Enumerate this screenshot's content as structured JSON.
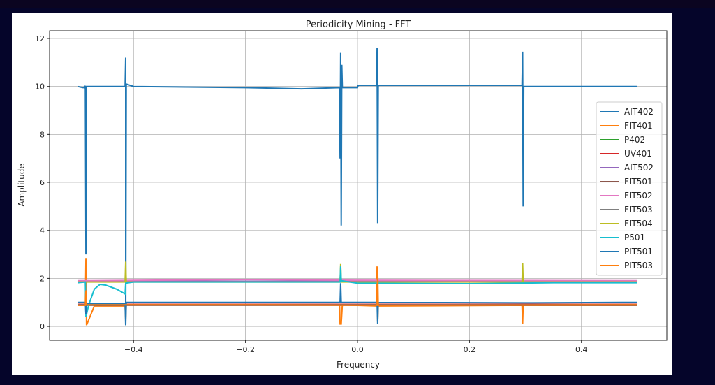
{
  "chart_data": {
    "type": "line",
    "title": "Periodicity Mining - FFT",
    "xlabel": "Frequency",
    "ylabel": "Amplitude",
    "xlim": [
      -0.55,
      0.5525
    ],
    "ylim": [
      -0.58,
      12.32
    ],
    "xticks": [
      -0.4,
      -0.2,
      0.0,
      0.2,
      0.4
    ],
    "xtick_labels": [
      "−0.4",
      "−0.2",
      "0.0",
      "0.2",
      "0.4"
    ],
    "yticks": [
      0,
      2,
      4,
      6,
      8,
      10,
      12
    ],
    "ytick_labels": [
      "0",
      "2",
      "4",
      "6",
      "8",
      "10",
      "12"
    ],
    "grid": true,
    "legend_position": "center-right",
    "series": [
      {
        "name": "AIT402",
        "color": "#1f77b4",
        "points": [
          [
            -0.5,
            10
          ],
          [
            -0.49,
            9.95
          ],
          [
            -0.487,
            10
          ],
          [
            -0.486,
            9.9
          ],
          [
            -0.485,
            3.0
          ],
          [
            -0.485,
            10
          ],
          [
            -0.415,
            10
          ],
          [
            -0.414,
            11.2
          ],
          [
            -0.414,
            0.05
          ],
          [
            -0.413,
            10.1
          ],
          [
            -0.4,
            10.0
          ],
          [
            -0.2,
            9.95
          ],
          [
            -0.1,
            9.9
          ],
          [
            -0.032,
            9.95
          ],
          [
            -0.031,
            7.0
          ],
          [
            -0.03,
            11.4
          ],
          [
            -0.029,
            4.2
          ],
          [
            -0.028,
            10.9
          ],
          [
            -0.027,
            9.95
          ],
          [
            0,
            9.95
          ],
          [
            0.001,
            10.05
          ],
          [
            0.034,
            10.05
          ],
          [
            0.035,
            11.6
          ],
          [
            0.036,
            4.3
          ],
          [
            0.037,
            10.05
          ],
          [
            0.2,
            10.05
          ],
          [
            0.294,
            10.05
          ],
          [
            0.295,
            11.45
          ],
          [
            0.296,
            5.0
          ],
          [
            0.297,
            10.0
          ],
          [
            0.4,
            10.0
          ],
          [
            0.5,
            10.0
          ]
        ]
      },
      {
        "name": "FIT401",
        "color": "#ff7f0e",
        "points": [
          [
            -0.5,
            0.9
          ],
          [
            -0.486,
            0.9
          ],
          [
            -0.485,
            2.85
          ],
          [
            -0.484,
            0.05
          ],
          [
            -0.47,
            0.85
          ],
          [
            -0.415,
            0.85
          ],
          [
            -0.414,
            0.3
          ],
          [
            -0.413,
            0.9
          ],
          [
            -0.2,
            0.9
          ],
          [
            -0.032,
            0.9
          ],
          [
            -0.031,
            0.1
          ],
          [
            -0.029,
            0.1
          ],
          [
            -0.027,
            0.9
          ],
          [
            0.034,
            0.85
          ],
          [
            0.035,
            2.5
          ],
          [
            0.036,
            0.2
          ],
          [
            0.037,
            0.85
          ],
          [
            0.294,
            0.88
          ],
          [
            0.295,
            0.1
          ],
          [
            0.296,
            0.88
          ],
          [
            0.5,
            0.88
          ]
        ]
      },
      {
        "name": "P402",
        "color": "#2ca02c",
        "points": [
          [
            -0.5,
            0.92
          ],
          [
            0.5,
            0.92
          ]
        ]
      },
      {
        "name": "UV401",
        "color": "#d62728",
        "points": [
          [
            -0.5,
            0.92
          ],
          [
            0.5,
            0.92
          ]
        ]
      },
      {
        "name": "AIT502",
        "color": "#9467bd",
        "points": [
          [
            -0.5,
            1.88
          ],
          [
            0.5,
            1.88
          ]
        ]
      },
      {
        "name": "FIT501",
        "color": "#8c564b",
        "points": [
          [
            -0.5,
            0.88
          ],
          [
            0.5,
            0.88
          ]
        ]
      },
      {
        "name": "FIT502",
        "color": "#e377c2",
        "points": [
          [
            -0.5,
            1.9
          ],
          [
            -0.2,
            1.95
          ],
          [
            0,
            1.92
          ],
          [
            0.5,
            1.9
          ]
        ]
      },
      {
        "name": "FIT503",
        "color": "#7f7f7f",
        "points": [
          [
            -0.5,
            0.9
          ],
          [
            0.5,
            0.9
          ]
        ]
      },
      {
        "name": "FIT504",
        "color": "#bcbd22",
        "points": [
          [
            -0.5,
            1.85
          ],
          [
            -0.415,
            1.85
          ],
          [
            -0.414,
            2.7
          ],
          [
            -0.413,
            1.85
          ],
          [
            -0.031,
            1.85
          ],
          [
            -0.03,
            2.6
          ],
          [
            -0.029,
            1.85
          ],
          [
            0.294,
            1.85
          ],
          [
            0.295,
            2.65
          ],
          [
            0.296,
            1.85
          ],
          [
            0.5,
            1.85
          ]
        ]
      },
      {
        "name": "P501",
        "color": "#17becf",
        "points": [
          [
            -0.5,
            1.82
          ],
          [
            -0.486,
            1.85
          ],
          [
            -0.485,
            0.4
          ],
          [
            -0.48,
            0.9
          ],
          [
            -0.47,
            1.55
          ],
          [
            -0.46,
            1.75
          ],
          [
            -0.45,
            1.72
          ],
          [
            -0.43,
            1.55
          ],
          [
            -0.415,
            1.35
          ],
          [
            -0.414,
            1.8
          ],
          [
            -0.4,
            1.85
          ],
          [
            -0.2,
            1.85
          ],
          [
            -0.031,
            1.85
          ],
          [
            -0.03,
            2.5
          ],
          [
            -0.029,
            1.9
          ],
          [
            0,
            1.8
          ],
          [
            0.2,
            1.78
          ],
          [
            0.35,
            1.82
          ],
          [
            0.5,
            1.82
          ]
        ]
      },
      {
        "name": "PIT501",
        "color": "#1f77b4",
        "points": [
          [
            -0.5,
            1.0
          ],
          [
            -0.486,
            1.0
          ],
          [
            -0.485,
            0.5
          ],
          [
            -0.484,
            0.95
          ],
          [
            -0.415,
            0.95
          ],
          [
            -0.414,
            0.05
          ],
          [
            -0.413,
            1.0
          ],
          [
            -0.2,
            1.0
          ],
          [
            -0.031,
            1.0
          ],
          [
            -0.03,
            1.8
          ],
          [
            -0.029,
            1.0
          ],
          [
            0.035,
            1.0
          ],
          [
            0.036,
            0.1
          ],
          [
            0.037,
            1.0
          ],
          [
            0.3,
            0.98
          ],
          [
            0.5,
            1.0
          ]
        ]
      },
      {
        "name": "PIT503",
        "color": "#ff7f0e",
        "points": [
          [
            -0.5,
            0.88
          ],
          [
            -0.486,
            0.88
          ],
          [
            -0.485,
            1.5
          ],
          [
            -0.484,
            0.9
          ],
          [
            -0.2,
            0.9
          ],
          [
            0.035,
            0.88
          ],
          [
            0.036,
            2.3
          ],
          [
            0.037,
            0.88
          ],
          [
            0.5,
            0.9
          ]
        ]
      }
    ]
  }
}
